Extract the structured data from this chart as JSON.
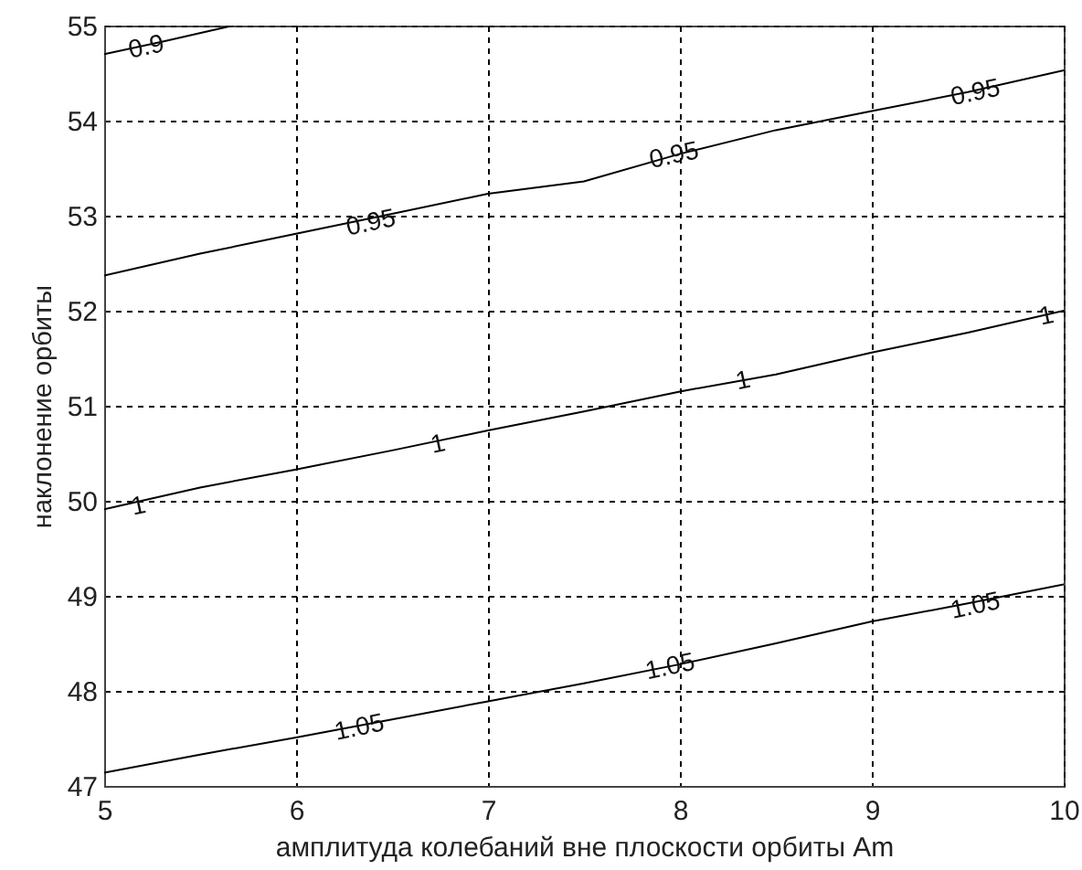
{
  "chart_data": {
    "type": "line",
    "xlabel": "амплитуда колебаний вне плоскости орбиты Am",
    "ylabel": "наклонение орбиты",
    "xlim": [
      5,
      10
    ],
    "ylim": [
      47,
      55
    ],
    "xticks": [
      5,
      6,
      7,
      8,
      9,
      10
    ],
    "yticks": [
      47,
      48,
      49,
      50,
      51,
      52,
      53,
      54,
      55
    ],
    "grid": true,
    "series": [
      {
        "color": "#000000",
        "x": [
          5,
          5.3,
          5.67
        ],
        "values": [
          54.7,
          54.83,
          55
        ]
      },
      {
        "color": "#000000",
        "x": [
          5,
          5.5,
          6,
          6.5,
          7,
          7.5,
          8,
          8.5,
          9,
          9.5,
          10
        ],
        "values": [
          52.37,
          52.6,
          52.81,
          53.02,
          53.23,
          53.36,
          53.65,
          53.9,
          54.1,
          54.3,
          54.53
        ]
      },
      {
        "color": "#000000",
        "x": [
          5,
          5.5,
          6,
          6.5,
          7,
          7.5,
          8,
          8.5,
          9,
          9.5,
          10
        ],
        "values": [
          49.91,
          50.14,
          50.33,
          50.53,
          50.74,
          50.94,
          51.15,
          51.33,
          51.56,
          51.77,
          52.0
        ]
      },
      {
        "color": "#000000",
        "x": [
          5,
          5.5,
          6,
          6.5,
          7,
          7.5,
          8,
          8.5,
          9,
          9.5,
          10
        ],
        "values": [
          47.14,
          47.33,
          47.51,
          47.7,
          47.89,
          48.08,
          48.28,
          48.5,
          48.73,
          48.92,
          49.12
        ]
      }
    ],
    "annotations": [
      {
        "text": "0.9",
        "x": 5.22,
        "y": 54.77
      },
      {
        "text": "0.95",
        "x": 6.39,
        "y": 52.92
      },
      {
        "text": "0.95",
        "x": 7.97,
        "y": 53.63
      },
      {
        "text": "0.95",
        "x": 9.54,
        "y": 54.29
      },
      {
        "text": "1",
        "x": 5.18,
        "y": 49.94
      },
      {
        "text": "1",
        "x": 6.74,
        "y": 50.59
      },
      {
        "text": "1",
        "x": 8.33,
        "y": 51.26
      },
      {
        "text": "1",
        "x": 9.91,
        "y": 51.94
      },
      {
        "text": "1.05",
        "x": 6.33,
        "y": 47.61
      },
      {
        "text": "1.05",
        "x": 7.95,
        "y": 48.25
      },
      {
        "text": "1.05",
        "x": 9.54,
        "y": 48.89
      }
    ]
  }
}
